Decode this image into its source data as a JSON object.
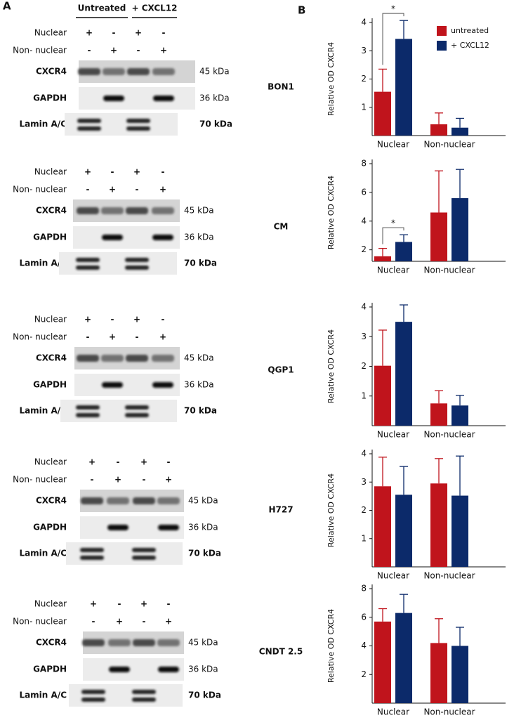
{
  "panel_a": {
    "label": "A",
    "header_groups": [
      "Untreated",
      "+ CXCL12"
    ],
    "blots": [
      {
        "rows": [
          {
            "label": "Nuclear",
            "marks": [
              "+",
              "-",
              "+",
              "-"
            ]
          },
          {
            "label": "Non- nuclear",
            "marks": [
              "-",
              "+",
              "-",
              "+"
            ]
          }
        ],
        "bands": [
          {
            "label": "CXCR4",
            "size": "45 kDa"
          },
          {
            "label": "GAPDH",
            "size": "36 kDa"
          },
          {
            "label": "Lamin A/C",
            "size": "70 kDa"
          }
        ]
      },
      {
        "rows": [
          {
            "label": "Nuclear",
            "marks": [
              "+",
              "-",
              "+",
              "-"
            ]
          },
          {
            "label": "Non- nuclear",
            "marks": [
              "-",
              "+",
              "-",
              "+"
            ]
          }
        ],
        "bands": [
          {
            "label": "CXCR4",
            "size": "45 kDa"
          },
          {
            "label": "GAPDH",
            "size": "36 kDa"
          },
          {
            "label": "Lamin A/C",
            "size": "70 kDa"
          }
        ]
      },
      {
        "rows": [
          {
            "label": "Nuclear",
            "marks": [
              "+",
              "-",
              "+",
              "-"
            ]
          },
          {
            "label": "Non- nuclear",
            "marks": [
              "-",
              "+",
              "-",
              "+"
            ]
          }
        ],
        "bands": [
          {
            "label": "CXCR4",
            "size": "45 kDa"
          },
          {
            "label": "GAPDH",
            "size": "36 kDa"
          },
          {
            "label": "Lamin A/C",
            "size": "70 kDa"
          }
        ]
      },
      {
        "rows": [
          {
            "label": "Nuclear",
            "marks": [
              "+",
              "-",
              "+",
              "-"
            ]
          },
          {
            "label": "Non- nuclear",
            "marks": [
              "-",
              "+",
              "-",
              "+"
            ]
          }
        ],
        "bands": [
          {
            "label": "CXCR4",
            "size": "45 kDa"
          },
          {
            "label": "GAPDH",
            "size": "36 kDa"
          },
          {
            "label": "Lamin A/C",
            "size": "70 kDa"
          }
        ]
      },
      {
        "rows": [
          {
            "label": "Nuclear",
            "marks": [
              "+",
              "-",
              "+",
              "-"
            ]
          },
          {
            "label": "Non- nuclear",
            "marks": [
              "-",
              "+",
              "-",
              "+"
            ]
          }
        ],
        "bands": [
          {
            "label": "CXCR4",
            "size": "45 kDa"
          },
          {
            "label": "GAPDH",
            "size": "36 kDa"
          },
          {
            "label": "Lamin A/C",
            "size": "70 kDa"
          }
        ]
      }
    ]
  },
  "panel_b_label": "B",
  "chart_data": [
    {
      "type": "bar",
      "title": "BON1",
      "ylabel": "Relative OD CXCR4",
      "categories": [
        "Nuclear",
        "Non-nuclear"
      ],
      "series": [
        {
          "name": "untreated",
          "color": "#c0141c",
          "values": [
            1.55,
            0.4
          ],
          "errors": [
            0.8,
            0.4
          ]
        },
        {
          "name": "+ CXCL12",
          "color": "#0c2a6a",
          "values": [
            3.42,
            0.28
          ],
          "errors": [
            0.65,
            0.33
          ]
        }
      ],
      "ylim": [
        0,
        4
      ],
      "yticks": [
        1,
        2,
        3,
        4
      ],
      "legend": "upper right",
      "significance": [
        {
          "category": "Nuclear",
          "label": "*"
        }
      ]
    },
    {
      "type": "bar",
      "title": "CM",
      "ylabel": "Relative OD CXCR4",
      "categories": [
        "Nuclear",
        "Non-nuclear"
      ],
      "series": [
        {
          "color": "#c0141c",
          "values": [
            1.55,
            4.6
          ],
          "errors": [
            0.55,
            2.9
          ]
        },
        {
          "color": "#0c2a6a",
          "values": [
            2.55,
            5.6
          ],
          "errors": [
            0.5,
            2.0
          ]
        }
      ],
      "ylim": [
        1.2,
        8
      ],
      "yticks": [
        2,
        4,
        6,
        8
      ],
      "significance": [
        {
          "category": "Nuclear",
          "label": "*"
        }
      ]
    },
    {
      "type": "bar",
      "title": "QGP1",
      "ylabel": "Relative OD CXCR4",
      "categories": [
        "Nuclear",
        "Non-nuclear"
      ],
      "series": [
        {
          "color": "#c0141c",
          "values": [
            2.02,
            0.75
          ],
          "errors": [
            1.2,
            0.43
          ]
        },
        {
          "color": "#0c2a6a",
          "values": [
            3.5,
            0.68
          ],
          "errors": [
            0.57,
            0.34
          ]
        }
      ],
      "ylim": [
        0,
        4
      ],
      "yticks": [
        1,
        2,
        3,
        4
      ]
    },
    {
      "type": "bar",
      "title": "H727",
      "ylabel": "Relative OD CXCR4",
      "categories": [
        "Nuclear",
        "Non-nuclear"
      ],
      "series": [
        {
          "color": "#c0141c",
          "values": [
            2.85,
            2.95
          ],
          "errors": [
            1.03,
            0.88
          ]
        },
        {
          "color": "#0c2a6a",
          "values": [
            2.55,
            2.52
          ],
          "errors": [
            1.0,
            1.4
          ]
        }
      ],
      "ylim": [
        0,
        4
      ],
      "yticks": [
        1,
        2,
        3,
        4
      ]
    },
    {
      "type": "bar",
      "title": "CNDT 2.5",
      "ylabel": "Relative OD CXCR4",
      "categories": [
        "Nuclear",
        "Non-nuclear"
      ],
      "series": [
        {
          "color": "#c0141c",
          "values": [
            5.7,
            4.2
          ],
          "errors": [
            0.9,
            1.7
          ]
        },
        {
          "color": "#0c2a6a",
          "values": [
            6.3,
            4.0
          ],
          "errors": [
            1.3,
            1.3
          ]
        }
      ],
      "ylim": [
        0,
        8
      ],
      "yticks": [
        2,
        4,
        6,
        8
      ]
    }
  ]
}
